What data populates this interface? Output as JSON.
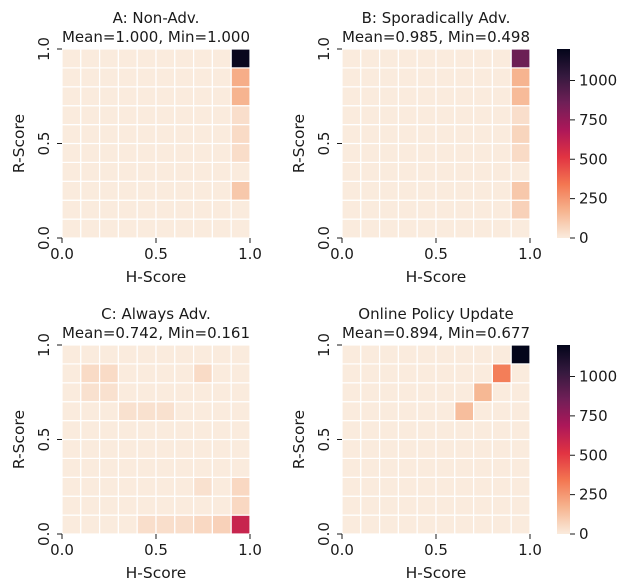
{
  "colorscale": {
    "min": 0,
    "max": 1200,
    "stops": [
      "#faebdd",
      "#f6b48f",
      "#f37651",
      "#e13342",
      "#ad1759",
      "#701f57",
      "#35193e",
      "#03051a"
    ]
  },
  "chart_data": [
    {
      "type": "heatmap",
      "title_line1": "A: Non-Adv.",
      "title_line2": "Mean=1.000, Min=1.000",
      "xlabel": "H-Score",
      "ylabel": "R-Score",
      "xticks": [
        "0.0",
        "0.5",
        "1.0"
      ],
      "yticks": [
        "0.0",
        "0.5",
        "1.0"
      ],
      "xlim": [
        0,
        1
      ],
      "ylim": [
        0,
        1
      ],
      "grid": "10x10",
      "colorbar": false,
      "cells": [
        {
          "col": 9,
          "row": 9,
          "value": 1180
        },
        {
          "col": 9,
          "row": 8,
          "value": 190
        },
        {
          "col": 9,
          "row": 7,
          "value": 170
        },
        {
          "col": 9,
          "row": 6,
          "value": 40
        },
        {
          "col": 9,
          "row": 5,
          "value": 50
        },
        {
          "col": 9,
          "row": 4,
          "value": 45
        },
        {
          "col": 9,
          "row": 2,
          "value": 110
        }
      ]
    },
    {
      "type": "heatmap",
      "title_line1": "B: Sporadically Adv.",
      "title_line2": "Mean=0.985, Min=0.498",
      "xlabel": "H-Score",
      "ylabel": "R-Score",
      "xticks": [
        "0.0",
        "0.5",
        "1.0"
      ],
      "yticks": [
        "0.0",
        "0.5",
        "1.0"
      ],
      "xlim": [
        0,
        1
      ],
      "ylim": [
        0,
        1
      ],
      "grid": "10x10",
      "colorbar": true,
      "colorbar_ticks": [
        "0",
        "250",
        "500",
        "750",
        "1000"
      ],
      "cells": [
        {
          "col": 9,
          "row": 9,
          "value": 870
        },
        {
          "col": 9,
          "row": 8,
          "value": 170
        },
        {
          "col": 9,
          "row": 7,
          "value": 150
        },
        {
          "col": 9,
          "row": 6,
          "value": 40
        },
        {
          "col": 9,
          "row": 5,
          "value": 70
        },
        {
          "col": 9,
          "row": 4,
          "value": 50
        },
        {
          "col": 9,
          "row": 2,
          "value": 110
        },
        {
          "col": 9,
          "row": 1,
          "value": 80
        }
      ]
    },
    {
      "type": "heatmap",
      "title_line1": "C: Always Adv.",
      "title_line2": "Mean=0.742, Min=0.161",
      "xlabel": "H-Score",
      "ylabel": "R-Score",
      "xticks": [
        "0.0",
        "0.5",
        "1.0"
      ],
      "yticks": [
        "0.0",
        "0.5",
        "1.0"
      ],
      "xlim": [
        0,
        1
      ],
      "ylim": [
        0,
        1
      ],
      "grid": "10x10",
      "colorbar": false,
      "cells": [
        {
          "col": 1,
          "row": 8,
          "value": 50
        },
        {
          "col": 2,
          "row": 8,
          "value": 50
        },
        {
          "col": 7,
          "row": 8,
          "value": 50
        },
        {
          "col": 1,
          "row": 7,
          "value": 30
        },
        {
          "col": 2,
          "row": 7,
          "value": 30
        },
        {
          "col": 3,
          "row": 6,
          "value": 30
        },
        {
          "col": 4,
          "row": 6,
          "value": 30
        },
        {
          "col": 5,
          "row": 6,
          "value": 30
        },
        {
          "col": 7,
          "row": 2,
          "value": 30
        },
        {
          "col": 9,
          "row": 2,
          "value": 60
        },
        {
          "col": 9,
          "row": 1,
          "value": 60
        },
        {
          "col": 4,
          "row": 0,
          "value": 40
        },
        {
          "col": 5,
          "row": 0,
          "value": 40
        },
        {
          "col": 6,
          "row": 0,
          "value": 40
        },
        {
          "col": 7,
          "row": 0,
          "value": 60
        },
        {
          "col": 8,
          "row": 0,
          "value": 80
        },
        {
          "col": 9,
          "row": 0,
          "value": 600
        }
      ]
    },
    {
      "type": "heatmap",
      "title_line1": "Online Policy Update",
      "title_line2": "Mean=0.894, Min=0.677",
      "xlabel": "H-Score",
      "ylabel": "R-Score",
      "xticks": [
        "0.0",
        "0.5",
        "1.0"
      ],
      "yticks": [
        "0.0",
        "0.5",
        "1.0"
      ],
      "xlim": [
        0,
        1
      ],
      "ylim": [
        0,
        1
      ],
      "grid": "10x10",
      "colorbar": true,
      "colorbar_ticks": [
        "0",
        "250",
        "500",
        "750",
        "1000"
      ],
      "cells": [
        {
          "col": 9,
          "row": 9,
          "value": 1200
        },
        {
          "col": 8,
          "row": 8,
          "value": 320
        },
        {
          "col": 7,
          "row": 7,
          "value": 160
        },
        {
          "col": 6,
          "row": 6,
          "value": 140
        }
      ]
    }
  ]
}
